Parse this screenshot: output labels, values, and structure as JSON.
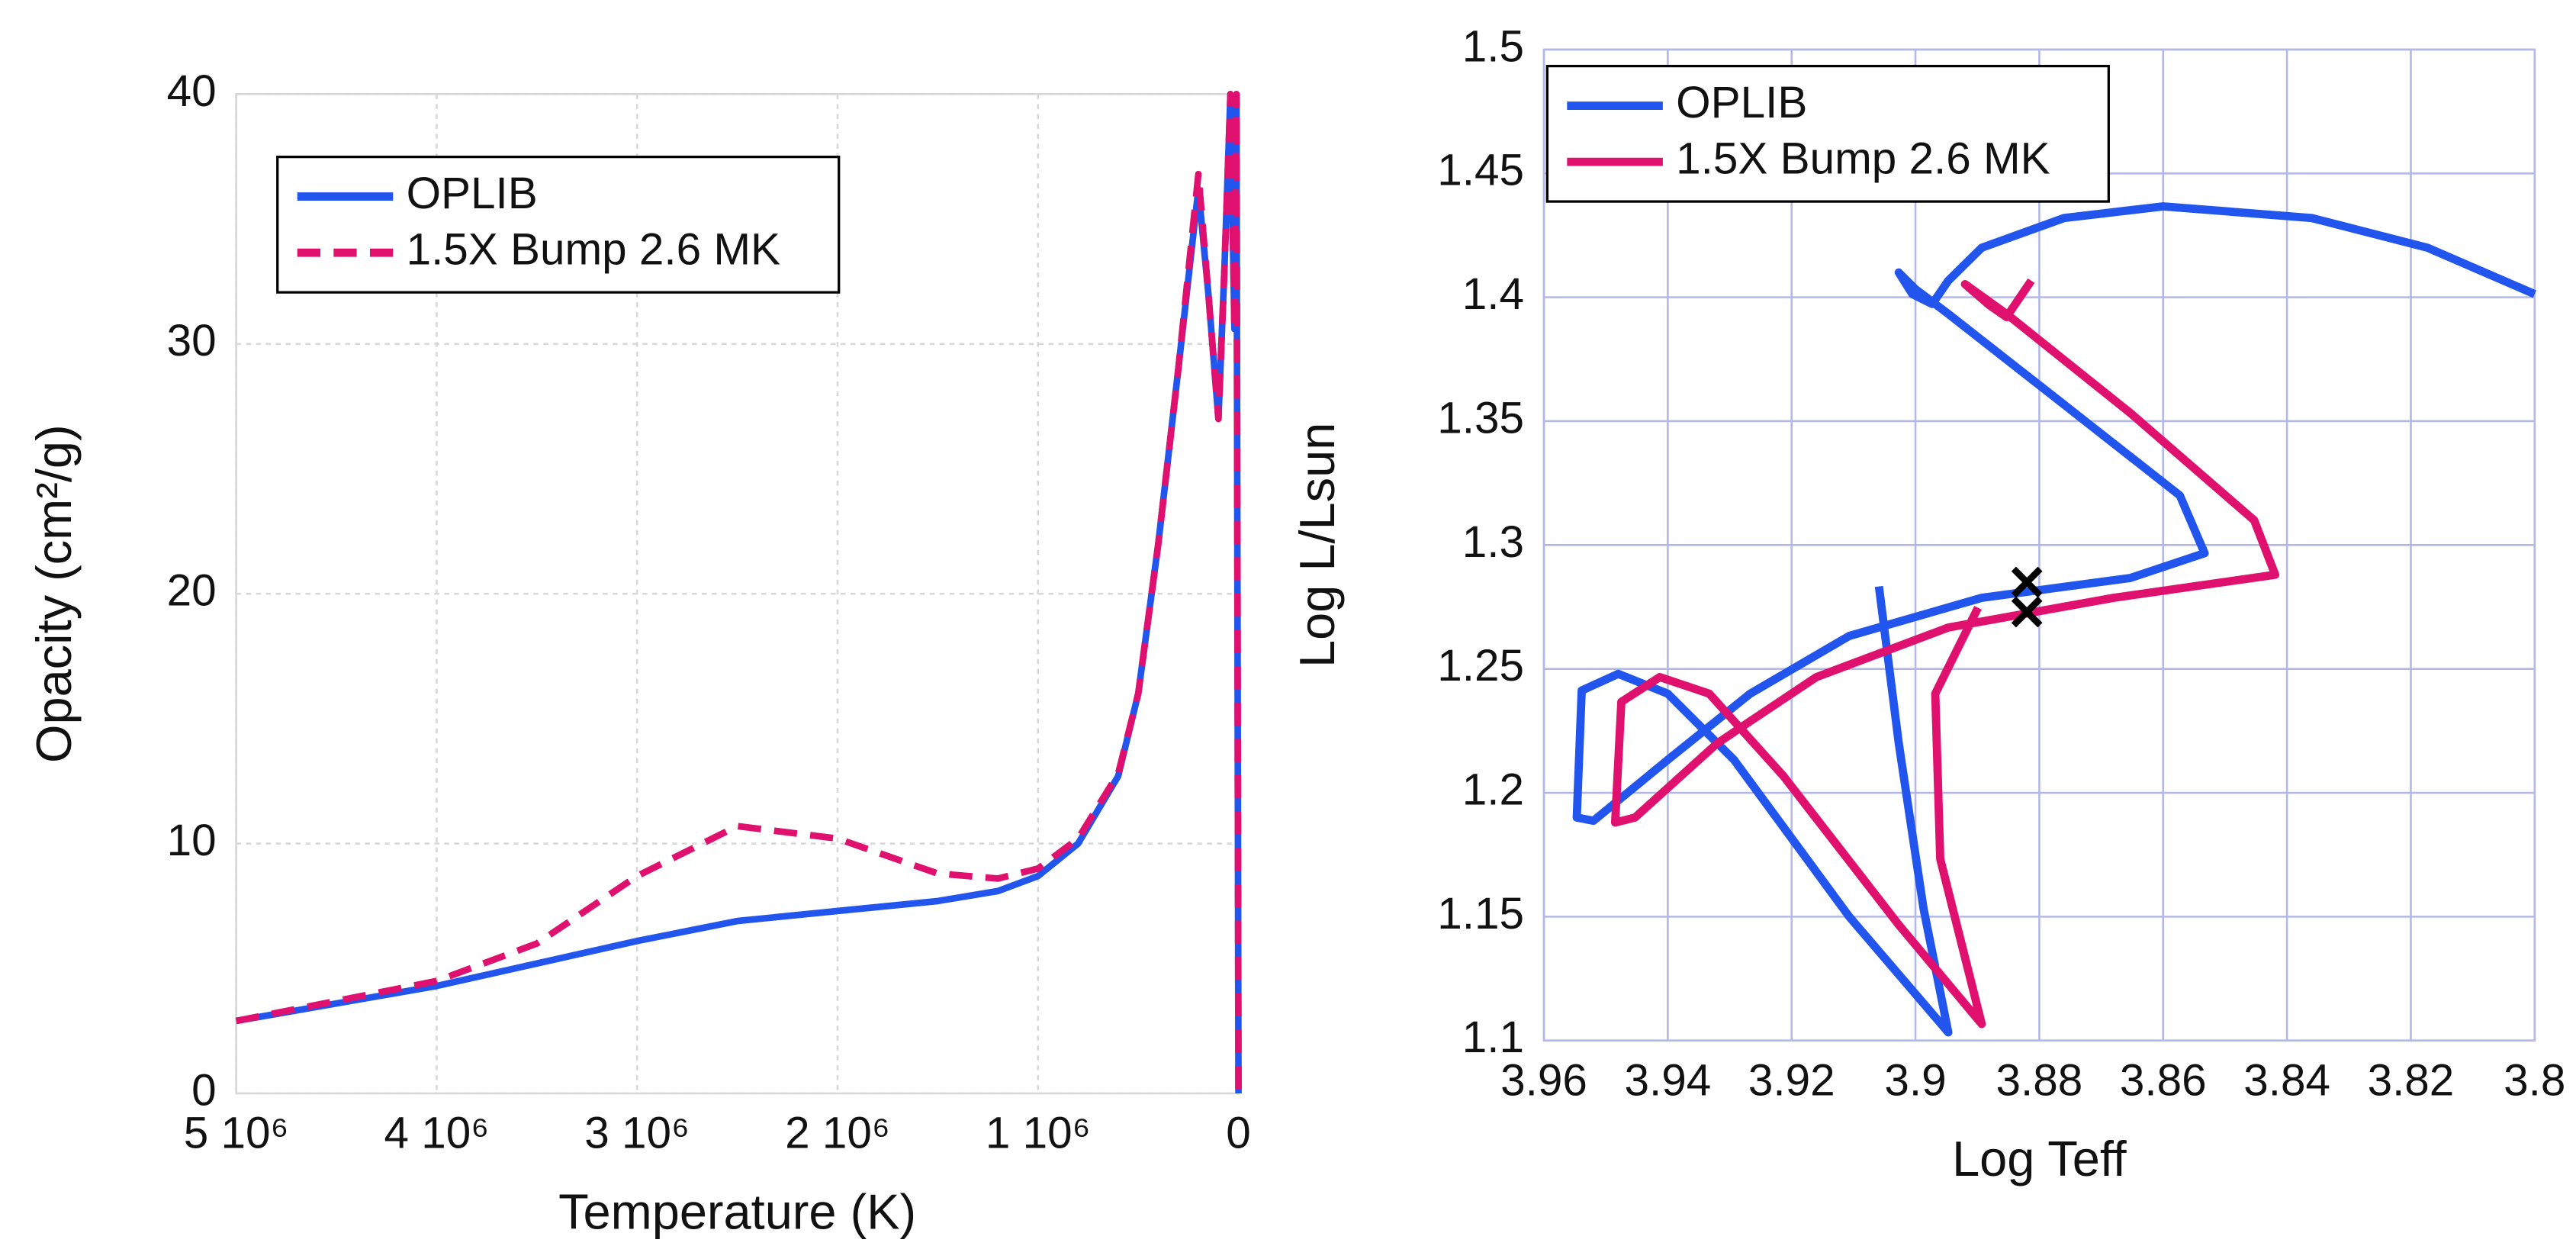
{
  "chart_data": [
    {
      "type": "line",
      "xlabel": "Temperature (K)",
      "ylabel": "Opacity (cm²/g)",
      "xlim": [
        5000000,
        0
      ],
      "ylim": [
        0,
        40
      ],
      "xticks": [
        {
          "value": 5000000,
          "label": "5 10⁶"
        },
        {
          "value": 4000000,
          "label": "4 10⁶"
        },
        {
          "value": 3000000,
          "label": "3 10⁶"
        },
        {
          "value": 2000000,
          "label": "2 10⁶"
        },
        {
          "value": 1000000,
          "label": "1 10⁶"
        },
        0
      ],
      "yticks": [
        0,
        10,
        20,
        30,
        40
      ],
      "grid": true,
      "grid_color": "#d8d8d8",
      "legend": "upper left",
      "series": [
        {
          "name": "OPLIB",
          "color": "#2255ee",
          "dash": false,
          "x": [
            5000000,
            4000000,
            3500000,
            3000000,
            2500000,
            2000000,
            1500000,
            1200000,
            1000000,
            800000,
            600000,
            500000,
            400000,
            300000,
            200000,
            150000,
            100000,
            70000,
            40000,
            20000,
            10000,
            0
          ],
          "values": [
            2.9,
            4.3,
            5.2,
            6.1,
            6.9,
            7.3,
            7.7,
            8.1,
            8.7,
            10,
            12.7,
            16,
            22,
            29,
            36.2,
            32,
            27,
            33,
            40,
            30.6,
            40,
            0
          ]
        },
        {
          "name": "1.5X Bump 2.6 MK",
          "color": "#e0106f",
          "dash": true,
          "x": [
            5000000,
            4000000,
            3500000,
            3000000,
            2500000,
            2000000,
            1500000,
            1200000,
            1000000,
            800000,
            600000,
            500000,
            400000,
            300000,
            200000,
            150000,
            100000,
            70000,
            40000,
            20000,
            10000,
            0
          ],
          "values": [
            2.9,
            4.5,
            6.0,
            8.7,
            10.7,
            10.2,
            8.8,
            8.6,
            9.0,
            10.2,
            12.8,
            16,
            22,
            29,
            36.8,
            32,
            27,
            33,
            40,
            30.6,
            40,
            0
          ]
        }
      ]
    },
    {
      "type": "line",
      "xlabel": "Log Teff",
      "ylabel": "Log L/Lsun",
      "xlim": [
        3.96,
        3.8
      ],
      "ylim": [
        1.1,
        1.5
      ],
      "xticks": [
        3.96,
        3.94,
        3.92,
        3.9,
        3.88,
        3.86,
        3.84,
        3.82,
        3.8
      ],
      "yticks": [
        1.1,
        1.15,
        1.2,
        1.25,
        1.3,
        1.35,
        1.4,
        1.45,
        1.5
      ],
      "grid": true,
      "grid_color": "#b4b8e6",
      "legend": "upper left",
      "series": [
        {
          "name": "OPLIB",
          "color": "#2255ee",
          "dash": false,
          "x": [
            3.9059,
            3.9027,
            3.8987,
            3.8947,
            3.9107,
            3.9293,
            3.94,
            3.948,
            3.9539,
            3.9547,
            3.952,
            3.94,
            3.9267,
            3.9107,
            3.8893,
            3.8653,
            3.8533,
            3.8573,
            3.876,
            3.8947,
            3.9,
            3.9027,
            3.9005,
            3.8973,
            3.8947,
            3.8893,
            3.876,
            3.86,
            3.836,
            3.8173,
            3.8
          ],
          "values": [
            1.2833,
            1.22,
            1.1533,
            1.1033,
            1.15,
            1.2133,
            1.24,
            1.248,
            1.2413,
            1.19,
            1.1887,
            1.2133,
            1.24,
            1.2633,
            1.2787,
            1.2867,
            1.2967,
            1.32,
            1.3567,
            1.3933,
            1.4033,
            1.41,
            1.4013,
            1.3973,
            1.4067,
            1.42,
            1.432,
            1.4367,
            1.432,
            1.42,
            1.4013
          ]
        },
        {
          "name": "1.5X Bump 2.6 MK",
          "color": "#e0106f",
          "dash": false,
          "x": [
            3.8899,
            3.8968,
            3.896,
            3.8893,
            3.9027,
            3.9213,
            3.9333,
            3.9413,
            3.9475,
            3.9485,
            3.9453,
            3.932,
            3.916,
            3.8947,
            3.868,
            3.8419,
            3.8453,
            3.8653,
            3.8853,
            3.892,
            3.888,
            3.8853,
            3.8813
          ],
          "values": [
            1.2747,
            1.24,
            1.1733,
            1.1067,
            1.1467,
            1.2067,
            1.24,
            1.2467,
            1.2367,
            1.188,
            1.19,
            1.22,
            1.2467,
            1.2667,
            1.2787,
            1.288,
            1.31,
            1.3533,
            1.3933,
            1.4053,
            1.3967,
            1.392,
            1.4067
          ]
        }
      ],
      "markers": {
        "x": [
          3.882,
          3.882
        ],
        "y": [
          1.285,
          1.273
        ],
        "color": "#000000"
      }
    }
  ]
}
